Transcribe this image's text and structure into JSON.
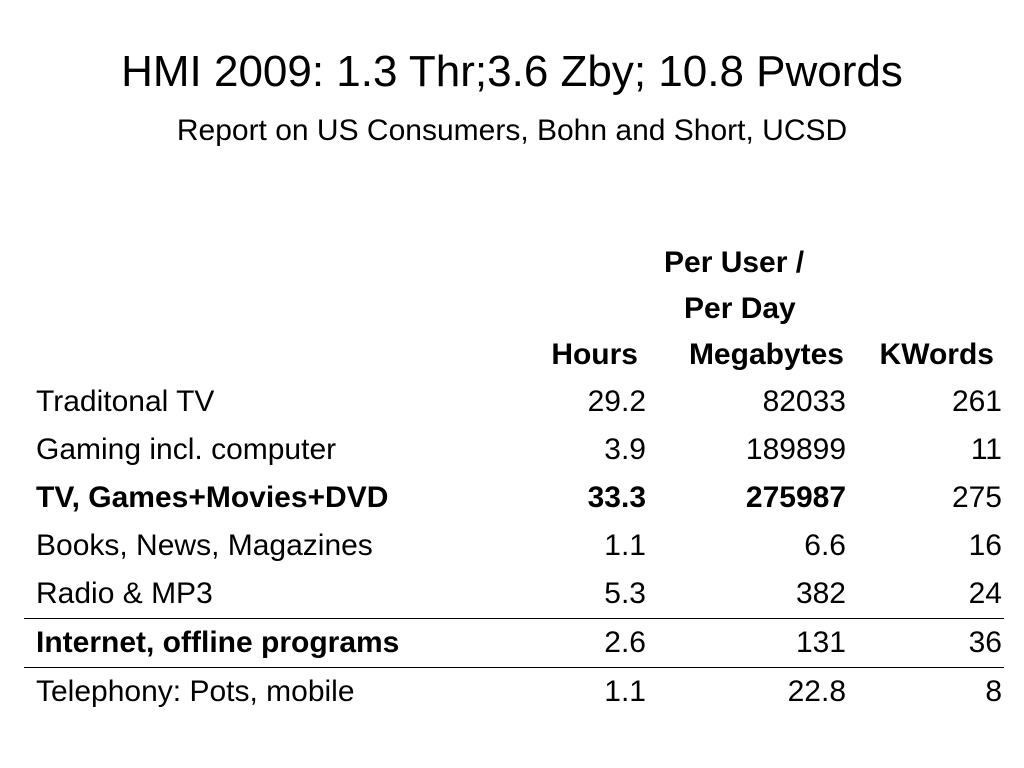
{
  "title": "HMI 2009: 1.3 Thr;3.6 Zby; 10.8 Pwords",
  "subtitle": "Report on US Consumers, Bohn and Short, UCSD",
  "table": {
    "group_header_line1": "Per User /",
    "group_header_line2": "Per Day",
    "columns": [
      "Hours",
      "Megabytes",
      "KWords"
    ],
    "rows": [
      {
        "label": "Traditonal TV",
        "hours": "29.2",
        "megabytes": "82033",
        "kwords": "261"
      },
      {
        "label": "Gaming incl. computer",
        "hours": "3.9",
        "megabytes": "189899",
        "kwords": "11"
      },
      {
        "label": "TV, Games+Movies+DVD",
        "hours": "33.3",
        "megabytes": "275987",
        "kwords": "275"
      },
      {
        "label": "Books, News, Magazines",
        "hours": "1.1",
        "megabytes": "6.6",
        "kwords": "16"
      },
      {
        "label": "Radio & MP3",
        "hours": "5.3",
        "megabytes": "382",
        "kwords": "24"
      },
      {
        "label": "Internet, offline programs",
        "hours": "2.6",
        "megabytes": "131",
        "kwords": "36"
      },
      {
        "label": "Telephony: Pots, mobile",
        "hours": "1.1",
        "megabytes": "22.8",
        "kwords": "8"
      }
    ]
  }
}
